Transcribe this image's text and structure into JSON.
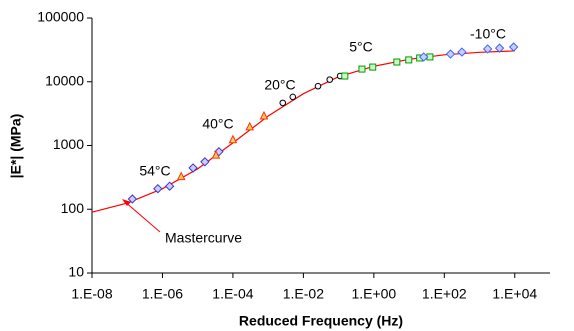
{
  "chart_data": {
    "type": "scatter",
    "xlabel": "Reduced Frequency (Hz)",
    "ylabel": "|E*| (MPa)",
    "xlog": true,
    "ylog": true,
    "grid": false,
    "xlim": [
      1e-08,
      100000.0
    ],
    "ylim": [
      10,
      100000
    ],
    "xticks": [
      {
        "value": 1e-08,
        "label": "1.E-08"
      },
      {
        "value": 1e-06,
        "label": "1.E-06"
      },
      {
        "value": 0.0001,
        "label": "1.E-04"
      },
      {
        "value": 0.01,
        "label": "1.E-02"
      },
      {
        "value": 1,
        "label": "1.E+00"
      },
      {
        "value": 100,
        "label": "1.E+02"
      },
      {
        "value": 10000,
        "label": "1.E+04"
      }
    ],
    "yticks": [
      10,
      100,
      1000,
      10000,
      100000
    ],
    "series": [
      {
        "name": "Mastercurve",
        "kind": "line",
        "color": "#ff0000",
        "x": [
          1e-08,
          1e-07,
          1e-06,
          1e-05,
          0.0001,
          0.001,
          0.01,
          0.1,
          1,
          10,
          100,
          1000,
          10000
        ],
        "values": [
          90,
          125,
          210,
          430,
          1100,
          2900,
          6500,
          12000,
          17500,
          22500,
          26500,
          29000,
          30500
        ]
      },
      {
        "name": "54°C",
        "kind": "marker",
        "marker": "diamond",
        "color": "#3333cc",
        "x": [
          1.4e-07,
          7.4e-07,
          1.6e-06,
          7.4e-06,
          1.6e-05,
          4e-05
        ],
        "values": [
          145,
          210,
          230,
          445,
          555,
          800
        ]
      },
      {
        "name": "40°C",
        "kind": "marker",
        "marker": "triangle",
        "color": "#ff3300",
        "x": [
          3.4e-06,
          3.3e-05,
          0.0001,
          0.0003,
          0.00076
        ],
        "values": [
          325,
          705,
          1230,
          1960,
          2900
        ]
      },
      {
        "name": "20°C",
        "kind": "marker",
        "marker": "circle",
        "color": "#000000",
        "x": [
          0.0026,
          0.005,
          0.026,
          0.056,
          0.11
        ],
        "values": [
          4660,
          5780,
          8530,
          10800,
          12300
        ]
      },
      {
        "name": "5°C",
        "kind": "marker",
        "marker": "square",
        "color": "#009900",
        "x": [
          0.15,
          0.46,
          0.93,
          4.5,
          9.8,
          20,
          39
        ],
        "values": [
          12300,
          15800,
          17000,
          20400,
          22000,
          23600,
          24500
        ]
      },
      {
        "name": "-10°C",
        "kind": "marker",
        "marker": "diamond",
        "color": "#3366ff",
        "x": [
          26,
          150,
          316,
          1700,
          3700,
          9300
        ],
        "values": [
          24500,
          27200,
          29200,
          32700,
          33700,
          35100
        ]
      }
    ]
  }
}
